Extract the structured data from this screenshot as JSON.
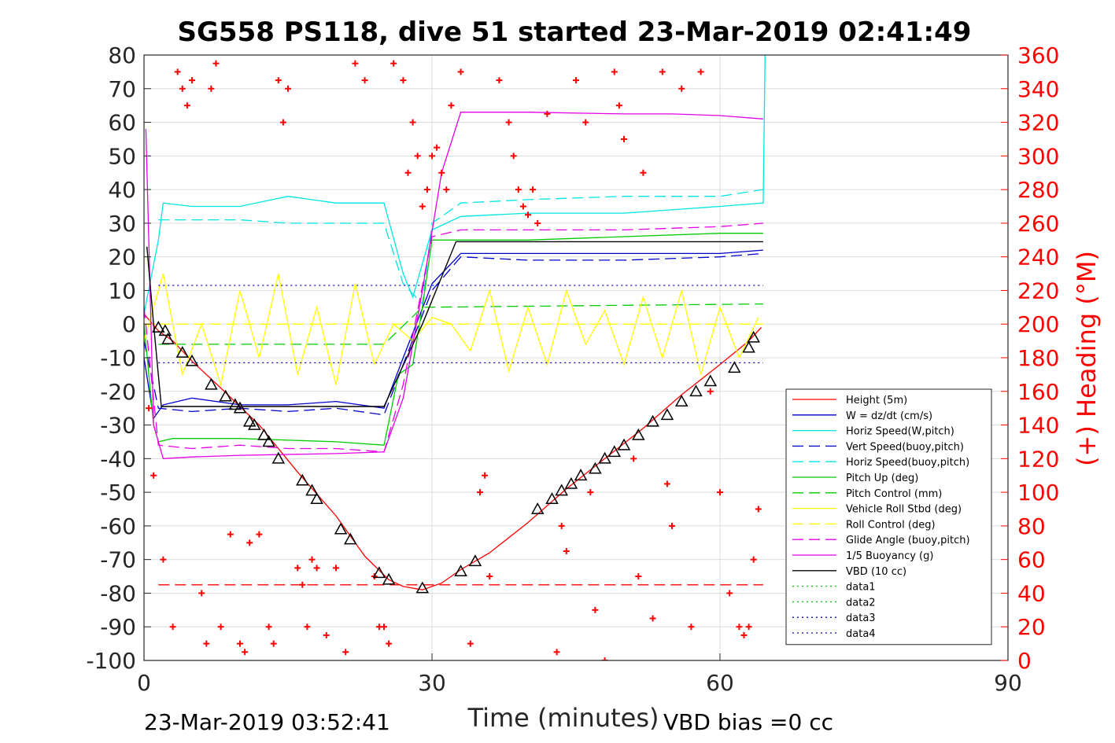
{
  "chart_data": {
    "type": "line",
    "title": "SG558 PS118, dive 51 started 23-Mar-2019 02:41:49",
    "xlabel": "Time (minutes)",
    "ylabel_left": "",
    "ylabel_right": "(+) Heading (°M)",
    "xlim": [
      0,
      90
    ],
    "ylim_left": [
      -100,
      80
    ],
    "ylim_right": [
      0,
      360
    ],
    "x_ticks": [
      "0",
      "30",
      "60",
      "90"
    ],
    "y_ticks_left": [
      "80",
      "70",
      "60",
      "50",
      "40",
      "30",
      "20",
      "10",
      "0",
      "-10",
      "-20",
      "-30",
      "-40",
      "-50",
      "-60",
      "-70",
      "-80",
      "-90",
      "-100"
    ],
    "y_ticks_right": [
      "360",
      "340",
      "320",
      "300",
      "280",
      "260",
      "240",
      "220",
      "200",
      "180",
      "160",
      "140",
      "120",
      "100",
      "80",
      "60",
      "40",
      "20",
      "0"
    ],
    "grid": true,
    "legend_position": "lower-right",
    "footer_left": "23-Mar-2019 03:52:41",
    "footer_right": "VBD bias =0 cc",
    "series": [
      {
        "name": "Height (5m)",
        "color": "#ff0000",
        "style": "solid",
        "x": [
          0,
          1.5,
          3,
          5,
          8,
          12,
          16,
          20,
          23,
          25.5,
          27,
          29,
          31,
          33,
          36,
          40,
          44,
          48,
          52,
          56,
          60,
          63,
          64.3
        ],
        "y": [
          3,
          -2,
          -5,
          -11,
          -19,
          -30,
          -44,
          -57,
          -69,
          -76,
          -78,
          -79,
          -77,
          -73,
          -68,
          -59,
          -49,
          -40,
          -31,
          -21,
          -12,
          -5,
          -1
        ]
      },
      {
        "name": "W = dz/dt (cm/s)",
        "color": "#0000cc",
        "style": "solid",
        "x": [
          0,
          1,
          2,
          5,
          10,
          15,
          20,
          25,
          27,
          30,
          33,
          40,
          50,
          60,
          64.5
        ],
        "y": [
          -10,
          -28,
          -24,
          -22,
          -24,
          -24,
          -23,
          -25,
          -10,
          12,
          21,
          21,
          21,
          21,
          22
        ]
      },
      {
        "name": "Horiz Speed(W,pitch)",
        "color": "#00e5e5",
        "style": "solid",
        "x": [
          0,
          1.5,
          2,
          5,
          10,
          15,
          20,
          25,
          27,
          28,
          30,
          33,
          40,
          50,
          60,
          64.5,
          64.7
        ],
        "y": [
          3,
          25,
          36,
          35,
          35,
          38,
          36,
          36,
          15,
          8,
          28,
          32,
          33,
          33,
          35,
          36,
          80
        ]
      },
      {
        "name": "Vert Speed(buoy,pitch)",
        "color": "#0000cc",
        "style": "dashed",
        "x": [
          0,
          1.5,
          5,
          10,
          15,
          20,
          25,
          27,
          30,
          33,
          40,
          50,
          60,
          64.5
        ],
        "y": [
          -5,
          -25,
          -26,
          -25,
          -26,
          -25,
          -27,
          -12,
          10,
          20,
          19,
          19,
          20,
          21
        ]
      },
      {
        "name": "Horiz Speed(buoy,pitch)",
        "color": "#00e5e5",
        "style": "dashed",
        "x": [
          1.5,
          5,
          10,
          15,
          20,
          25,
          27,
          29,
          30,
          33,
          40,
          50,
          60,
          64.5
        ],
        "y": [
          31,
          31,
          31,
          30,
          30,
          30,
          12,
          6,
          30,
          36,
          37,
          38,
          38,
          40
        ]
      },
      {
        "name": "Pitch Up (deg)",
        "color": "#00cc00",
        "style": "solid",
        "x": [
          0,
          1,
          1.5,
          3,
          10,
          20,
          25,
          26.5,
          28,
          29,
          30,
          33,
          40,
          50,
          60,
          64.5
        ],
        "y": [
          0,
          -30,
          -35,
          -34,
          -34,
          -35,
          -36,
          -15,
          -12,
          5,
          25,
          25,
          25,
          26,
          27,
          27
        ]
      },
      {
        "name": "Pitch Control (mm)",
        "color": "#00cc00",
        "style": "dashed",
        "x": [
          1.5,
          25,
          29,
          64.5
        ],
        "y": [
          -6,
          -6,
          5,
          6
        ]
      },
      {
        "name": "Vehicle Roll Stbd (deg)",
        "color": "#ffff00",
        "style": "solid",
        "x": [
          0,
          2,
          4,
          6,
          8,
          10,
          12,
          14,
          16,
          18,
          20,
          22,
          24,
          26,
          28,
          30,
          32,
          34,
          36,
          38,
          40,
          42,
          44,
          46,
          48,
          50,
          52,
          54,
          56,
          58,
          60,
          62,
          64
        ],
        "y": [
          -5,
          15,
          -15,
          0,
          -18,
          10,
          -10,
          15,
          -15,
          5,
          -18,
          12,
          -12,
          0,
          -5,
          2,
          0,
          -8,
          10,
          -14,
          5,
          -12,
          10,
          -6,
          4,
          -12,
          8,
          -10,
          10,
          -15,
          5,
          -10,
          2
        ]
      },
      {
        "name": "Roll Control (deg)",
        "color": "#ffff00",
        "style": "dashed",
        "x": [
          0,
          64.5
        ],
        "y": [
          0,
          0
        ]
      },
      {
        "name": "Glide Angle (buoy,pitch)",
        "color": "#e600e6",
        "style": "dashed",
        "x": [
          0,
          1.5,
          5,
          10,
          15,
          20,
          25,
          27,
          30,
          33,
          40,
          50,
          60,
          64.5
        ],
        "y": [
          5,
          -36,
          -37,
          -36,
          -37,
          -37,
          -38,
          -18,
          26,
          28,
          28,
          28,
          29,
          30
        ]
      },
      {
        "name": "1/5 Buoyancy (g)",
        "color": "#e600e6",
        "style": "solid",
        "x": [
          0.2,
          1,
          1.5,
          2,
          5,
          10,
          20,
          25,
          27,
          29,
          31,
          33,
          40,
          50,
          55,
          60,
          64.5
        ],
        "y": [
          58,
          -30,
          -35,
          -40,
          -39.5,
          -39,
          -38.5,
          -38,
          -22,
          10,
          45,
          63,
          63,
          62.5,
          62.5,
          62,
          61
        ]
      },
      {
        "name": "VBD (10 cc)",
        "color": "#000000",
        "style": "solid",
        "x": [
          0.3,
          1,
          1.8,
          25,
          29,
          32.5,
          64.5
        ],
        "y": [
          23,
          0,
          -24.5,
          -24.5,
          0,
          24.5,
          24.5
        ]
      },
      {
        "name": "data1",
        "color": "#00cc00",
        "style": "dotted",
        "x": [],
        "y": []
      },
      {
        "name": "data2",
        "color": "#00cc00",
        "style": "dotted",
        "x": [],
        "y": []
      },
      {
        "name": "data3",
        "color": "#0000cc",
        "style": "dotted",
        "x": [
          1.5,
          64.5
        ],
        "y": [
          11.5,
          11.5
        ]
      },
      {
        "name": "data4",
        "color": "#0000cc",
        "style": "dotted",
        "x": [
          1.5,
          64.5
        ],
        "y": [
          -11.5,
          -11.5
        ]
      }
    ],
    "extra_lines": [
      {
        "color": "#ff0000",
        "style": "dashed",
        "x": [
          1.5,
          64.5
        ],
        "y": [
          -77.5,
          -77.5
        ]
      }
    ],
    "heading": {
      "color": "#ff0000",
      "marker": "+",
      "axis": "right",
      "t": [
        0.5,
        1,
        2,
        3,
        3.5,
        4,
        4.5,
        5,
        6,
        6.5,
        7,
        7.5,
        8,
        9,
        10,
        10.5,
        11,
        12,
        13,
        13.5,
        14,
        14.5,
        15,
        16,
        16.5,
        17,
        17.5,
        18,
        19,
        20,
        21,
        22,
        23,
        24,
        24.5,
        25,
        25.5,
        26,
        27,
        27.5,
        28,
        28.5,
        29,
        29.5,
        30,
        30.5,
        31,
        31.5,
        32,
        33,
        34,
        35,
        35.5,
        36,
        37,
        38,
        38.5,
        39,
        39.5,
        40,
        40.5,
        41,
        42,
        43,
        43.5,
        44,
        45,
        46,
        46.5,
        47,
        48,
        49,
        49.5,
        50,
        51,
        51.5,
        52,
        53,
        54,
        54.5,
        55,
        56,
        57,
        58,
        59,
        60,
        61,
        62,
        62.5,
        63,
        63.5,
        64
      ],
      "h": [
        150,
        110,
        60,
        20,
        350,
        340,
        330,
        345,
        40,
        10,
        340,
        355,
        20,
        75,
        10,
        5,
        70,
        75,
        20,
        10,
        345,
        320,
        340,
        55,
        45,
        20,
        60,
        55,
        15,
        55,
        5,
        355,
        345,
        50,
        20,
        20,
        10,
        355,
        345,
        290,
        320,
        300,
        270,
        280,
        300,
        305,
        290,
        280,
        330,
        350,
        10,
        100,
        110,
        50,
        345,
        320,
        300,
        280,
        270,
        265,
        280,
        260,
        325,
        5,
        80,
        65,
        345,
        320,
        100,
        30,
        0,
        350,
        330,
        310,
        120,
        50,
        290,
        25,
        350,
        105,
        80,
        340,
        20,
        350,
        160,
        100,
        40,
        20,
        15,
        20,
        60,
        90
      ]
    },
    "markers": {
      "style": "triangle",
      "t": [
        1.5,
        2.2,
        2.5,
        4,
        5,
        7,
        8.5,
        9.5,
        10,
        11,
        11.5,
        12.5,
        13,
        14,
        16.5,
        17.5,
        18,
        20.5,
        21.5,
        24.5,
        25.5,
        29,
        33,
        34.5,
        41,
        42.5,
        43.5,
        44.5,
        45.5,
        47,
        48,
        49,
        50,
        51.5,
        53,
        54.5,
        56,
        57.5,
        59,
        61.5,
        63,
        63.5
      ],
      "y": [
        -1,
        -2,
        -4.5,
        -8.5,
        -11,
        -18,
        -21.5,
        -24,
        -25,
        -29,
        -30,
        -33,
        -35,
        -40,
        -46.5,
        -49.5,
        -52,
        -61,
        -64,
        -74,
        -76,
        -78.5,
        -73.5,
        -70.5,
        -55,
        -52,
        -49.5,
        -47.5,
        -45,
        -43,
        -40,
        -38,
        -36,
        -33,
        -29,
        -27,
        -23,
        -20,
        -17,
        -13,
        -7,
        -4
      ]
    }
  }
}
